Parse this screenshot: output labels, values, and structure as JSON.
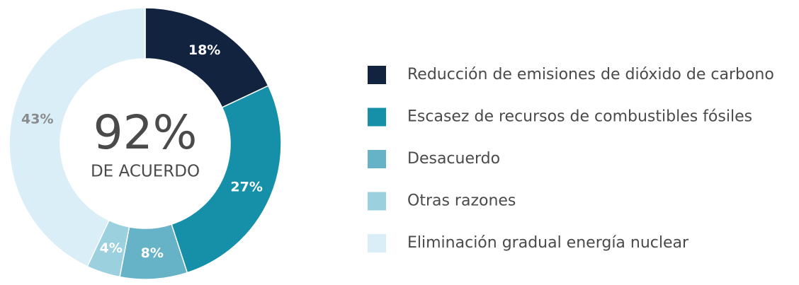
{
  "chart_data": {
    "type": "donut",
    "categories": [
      "Reducción de emisiones de dióxido de carbono",
      "Escasez de recursos de combustibles fósiles",
      "Desacuerdo",
      "Otras razones",
      "Eliminación gradual energía nuclear"
    ],
    "values": [
      18,
      27,
      8,
      4,
      43
    ],
    "value_labels": [
      "18%",
      "27%",
      "8%",
      "4%",
      "43%"
    ],
    "colors": [
      "#11233f",
      "#1590a8",
      "#66b2c7",
      "#9bd0de",
      "#d9eef6"
    ],
    "center_title": "92%",
    "center_subtitle": "DE ACUERDO",
    "legend": "right"
  }
}
